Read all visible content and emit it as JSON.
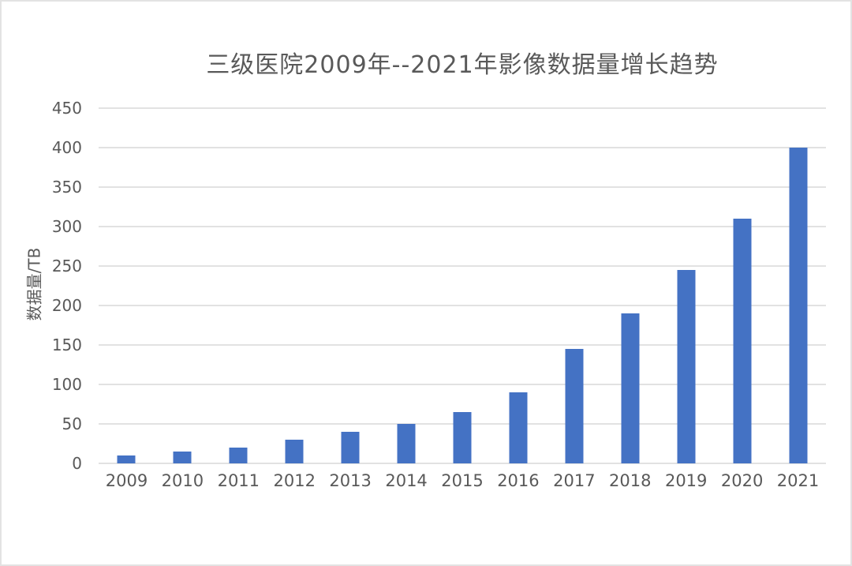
{
  "chart_data": {
    "type": "bar",
    "title": "三级医院2009年--2021年影像数据量增长趋势",
    "ylabel": "数据量/TB",
    "xlabel": "",
    "categories": [
      "2009",
      "2010",
      "2011",
      "2012",
      "2013",
      "2014",
      "2015",
      "2016",
      "2017",
      "2018",
      "2019",
      "2020",
      "2021"
    ],
    "values": [
      10,
      15,
      20,
      30,
      40,
      50,
      65,
      90,
      145,
      190,
      245,
      310,
      400
    ],
    "ylim": [
      0,
      450
    ],
    "yticks": [
      0,
      50,
      100,
      150,
      200,
      250,
      300,
      350,
      400,
      450
    ],
    "grid": "horizontal",
    "legend_position": "none",
    "bar_color": "#4472c4"
  },
  "colors": {
    "text": "#595959",
    "gridline": "#e2e2e2",
    "background": "#ffffff",
    "border": "#e3e3e3"
  }
}
